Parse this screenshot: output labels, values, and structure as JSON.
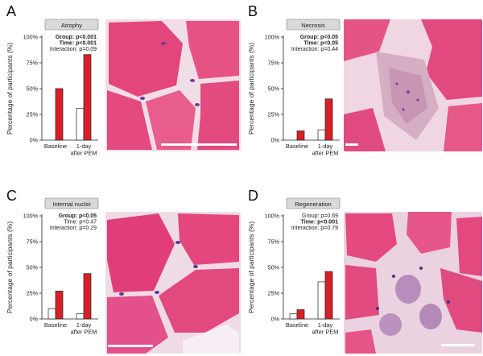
{
  "panels": [
    {
      "letter": "A",
      "title": "Atrophy",
      "stats": [
        {
          "label": "Group:",
          "value": "p<0.001",
          "bold": true
        },
        {
          "label": "Time:",
          "value": "p<0.001",
          "bold": true
        },
        {
          "label": "Interaction:",
          "value": "p=0.09",
          "bold": false
        }
      ]
    },
    {
      "letter": "B",
      "title": "Necrosis",
      "stats": [
        {
          "label": "Group:",
          "value": "p<0.05",
          "bold": true
        },
        {
          "label": "Time:",
          "value": "p<0.05",
          "bold": true
        },
        {
          "label": "Interaction:",
          "value": "p=0.44",
          "bold": false
        }
      ]
    },
    {
      "letter": "C",
      "title": "Internal nuclei",
      "stats": [
        {
          "label": "Group:",
          "value": "p<0.05",
          "bold": true
        },
        {
          "label": "Time:",
          "value": "p=0.47",
          "bold": false
        },
        {
          "label": "Interaction:",
          "value": "p=0.29",
          "bold": false
        }
      ]
    },
    {
      "letter": "D",
      "title": "Regeneration",
      "stats": [
        {
          "label": "Group:",
          "value": "p=0.69",
          "bold": false
        },
        {
          "label": "Time:",
          "value": "p<0.001",
          "bold": true
        },
        {
          "label": "Interaction:",
          "value": "p=0.79",
          "bold": false
        }
      ]
    }
  ],
  "chart_data": [
    {
      "type": "bar",
      "title": "Atrophy",
      "ylabel": "Percentage of participants (%)",
      "categories": [
        "Baseline",
        "1-day after PEM"
      ],
      "ylim": [
        0,
        100
      ],
      "yticks": [
        "0%",
        "25%",
        "50%",
        "75%",
        "100%"
      ],
      "series": [
        {
          "color": "#ffffff",
          "values": [
            0,
            31
          ]
        },
        {
          "color": "#d81f26",
          "values": [
            50,
            83
          ]
        }
      ]
    },
    {
      "type": "bar",
      "title": "Necrosis",
      "ylabel": "Percentage of participants (%)",
      "categories": [
        "Baseline",
        "1-day after PEM"
      ],
      "ylim": [
        0,
        100
      ],
      "yticks": [
        "0%",
        "25%",
        "50%",
        "75%",
        "100%"
      ],
      "series": [
        {
          "color": "#ffffff",
          "values": [
            0,
            10
          ]
        },
        {
          "color": "#d81f26",
          "values": [
            9,
            40
          ]
        }
      ]
    },
    {
      "type": "bar",
      "title": "Internal nuclei",
      "ylabel": "Percentage of participants (%)",
      "categories": [
        "Baseline",
        "1-day after PEM"
      ],
      "ylim": [
        0,
        100
      ],
      "yticks": [
        "0%",
        "25%",
        "50%",
        "75%",
        "100%"
      ],
      "series": [
        {
          "color": "#ffffff",
          "values": [
            10,
            5
          ]
        },
        {
          "color": "#d81f26",
          "values": [
            27,
            44
          ]
        }
      ]
    },
    {
      "type": "bar",
      "title": "Regeneration",
      "ylabel": "Percentage of participants (%)",
      "categories": [
        "Baseline",
        "1-day after PEM"
      ],
      "ylim": [
        0,
        100
      ],
      "yticks": [
        "0%",
        "25%",
        "50%",
        "75%",
        "100%"
      ],
      "series": [
        {
          "color": "#ffffff",
          "values": [
            5,
            36
          ]
        },
        {
          "color": "#d81f26",
          "values": [
            9,
            46
          ]
        }
      ]
    }
  ]
}
